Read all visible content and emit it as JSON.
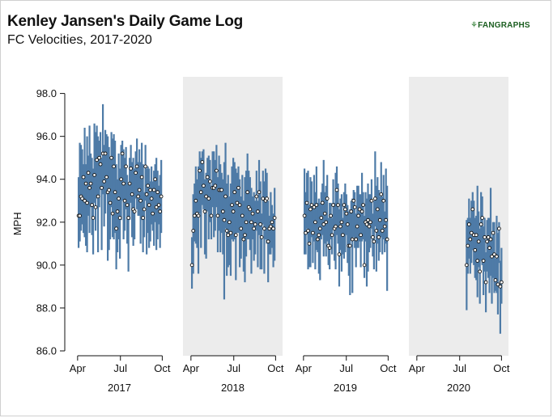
{
  "header": {
    "title": "Kenley Jansen's Daily Game Log",
    "subtitle": "FC Velocities, 2017-2020",
    "logo_text": "FANGRAPHS"
  },
  "colors": {
    "range_bar": "#4e7ba7",
    "point_fill": "#ffffff",
    "point_stroke": "#111111",
    "shaded_panel": "#ececec",
    "logo_green": "#2e7d32"
  },
  "chart_data": {
    "type": "scatter",
    "title": "Kenley Jansen's Daily Game Log",
    "subtitle": "FC Velocities, 2017-2020",
    "ylabel": "MPH",
    "ylim": [
      86,
      98.5
    ],
    "yticks": [
      "86.0",
      "88.0",
      "90.0",
      "92.0",
      "94.0",
      "96.0",
      "98.0"
    ],
    "xtick_labels": [
      "Apr",
      "Jul",
      "Oct"
    ],
    "grid": false,
    "panels": [
      {
        "year": "2017",
        "shaded": false,
        "games": [
          [
            92.3,
            90.8,
            94.1
          ],
          [
            92.3,
            91.1,
            95.7
          ],
          [
            93.2,
            91.6,
            95.6
          ],
          [
            93.1,
            91.9,
            95.4
          ],
          [
            94.1,
            91.5,
            94.7
          ],
          [
            93.0,
            91.3,
            96.4
          ],
          [
            93.8,
            90.9,
            94.7
          ],
          [
            92.9,
            90.6,
            96.0
          ],
          [
            94.3,
            92.3,
            95.1
          ],
          [
            93.6,
            91.5,
            96.5
          ],
          [
            93.8,
            92.7,
            95.2
          ],
          [
            92.8,
            91.4,
            95.0
          ],
          [
            92.2,
            90.5,
            94.5
          ],
          [
            94.2,
            92.9,
            96.6
          ],
          [
            92.7,
            91.6,
            96.2
          ],
          [
            94.9,
            93.1,
            96.5
          ],
          [
            93.2,
            90.6,
            96.0
          ],
          [
            95.0,
            92.7,
            95.8
          ],
          [
            94.7,
            93.5,
            96.2
          ],
          [
            93.6,
            90.7,
            95.0
          ],
          [
            95.2,
            93.3,
            97.5
          ],
          [
            93.9,
            91.8,
            95.6
          ],
          [
            95.2,
            92.4,
            96.3
          ],
          [
            94.1,
            93.3,
            96.1
          ],
          [
            93.4,
            90.2,
            96.0
          ],
          [
            93.5,
            90.7,
            95.5
          ],
          [
            92.9,
            91.2,
            95.0
          ],
          [
            95.0,
            92.7,
            96.2
          ],
          [
            92.4,
            91.3,
            95.9
          ],
          [
            94.6,
            91.2,
            96.1
          ],
          [
            93.4,
            91.5,
            95.8
          ],
          [
            91.7,
            89.8,
            94.7
          ],
          [
            92.5,
            90.6,
            94.0
          ],
          [
            93.1,
            91.2,
            95.2
          ],
          [
            92.2,
            90.3,
            94.5
          ],
          [
            94.0,
            92.1,
            95.6
          ],
          [
            95.2,
            93.0,
            95.8
          ],
          [
            93.8,
            91.2,
            95.4
          ],
          [
            93.0,
            91.6,
            95.0
          ],
          [
            94.6,
            92.6,
            95.5
          ],
          [
            92.8,
            91.0,
            94.2
          ],
          [
            92.2,
            89.7,
            93.8
          ],
          [
            93.8,
            92.1,
            95.0
          ],
          [
            94.5,
            92.9,
            95.6
          ],
          [
            93.3,
            91.3,
            94.8
          ],
          [
            92.6,
            90.9,
            95.0
          ],
          [
            92.5,
            91.2,
            94.5
          ],
          [
            94.3,
            93.1,
            95.3
          ],
          [
            94.6,
            92.6,
            95.9
          ],
          [
            93.2,
            92.3,
            94.8
          ],
          [
            93.5,
            92.3,
            95.4
          ],
          [
            93.0,
            91.0,
            94.8
          ],
          [
            94.1,
            92.1,
            95.7
          ],
          [
            92.2,
            90.6,
            94.7
          ],
          [
            92.6,
            91.3,
            93.4
          ],
          [
            94.6,
            93.0,
            95.6
          ],
          [
            93.3,
            90.5,
            94.5
          ],
          [
            93.7,
            91.5,
            94.6
          ],
          [
            92.8,
            90.8,
            94.5
          ],
          [
            93.5,
            91.1,
            93.9
          ],
          [
            93.1,
            91.9,
            94.6
          ],
          [
            92.4,
            91.6,
            93.9
          ],
          [
            93.5,
            90.9,
            94.4
          ],
          [
            94.0,
            92.0,
            94.7
          ],
          [
            92.7,
            90.7,
            95.0
          ],
          [
            93.4,
            91.2,
            94.4
          ],
          [
            92.8,
            91.9,
            93.7
          ],
          [
            92.5,
            90.8,
            94.2
          ],
          [
            93.2,
            91.5,
            94.9
          ]
        ]
      },
      {
        "year": "2018",
        "shaded": true,
        "games": [
          [
            90.0,
            88.9,
            91.3
          ],
          [
            91.6,
            89.6,
            93.3
          ],
          [
            92.3,
            91.1,
            93.8
          ],
          [
            93.0,
            91.0,
            94.6
          ],
          [
            92.4,
            90.8,
            94.0
          ],
          [
            92.3,
            89.6,
            94.6
          ],
          [
            94.4,
            92.4,
            95.3
          ],
          [
            93.4,
            90.8,
            95.0
          ],
          [
            94.8,
            92.8,
            95.3
          ],
          [
            93.7,
            92.6,
            95.4
          ],
          [
            92.5,
            90.5,
            94.0
          ],
          [
            93.2,
            90.3,
            94.3
          ],
          [
            94.1,
            92.5,
            95.0
          ],
          [
            93.1,
            91.2,
            95.1
          ],
          [
            93.9,
            92.0,
            94.9
          ],
          [
            92.3,
            91.2,
            93.7
          ],
          [
            93.6,
            92.7,
            95.3
          ],
          [
            93.6,
            91.3,
            95.3
          ],
          [
            93.7,
            91.6,
            94.9
          ],
          [
            94.4,
            92.7,
            95.6
          ],
          [
            92.3,
            90.6,
            94.1
          ],
          [
            93.5,
            91.6,
            95.1
          ],
          [
            93.5,
            90.6,
            94.7
          ],
          [
            93.5,
            91.5,
            94.3
          ],
          [
            92.5,
            90.5,
            94.0
          ],
          [
            92.1,
            88.4,
            94.8
          ],
          [
            93.2,
            91.7,
            95.7
          ],
          [
            91.6,
            89.5,
            93.8
          ],
          [
            91.4,
            89.9,
            94.2
          ],
          [
            92.0,
            90.0,
            93.2
          ],
          [
            91.5,
            89.5,
            93.8
          ],
          [
            92.8,
            91.2,
            94.6
          ],
          [
            92.5,
            91.1,
            95.0
          ],
          [
            93.4,
            91.2,
            94.8
          ],
          [
            91.4,
            89.3,
            94.5
          ],
          [
            92.9,
            91.5,
            94.3
          ],
          [
            93.6,
            91.5,
            94.6
          ],
          [
            92.8,
            89.9,
            94.0
          ],
          [
            91.7,
            90.3,
            93.2
          ],
          [
            92.3,
            91.2,
            94.2
          ],
          [
            91.2,
            89.7,
            93.0
          ],
          [
            91.4,
            89.2,
            94.1
          ],
          [
            92.0,
            90.4,
            94.4
          ],
          [
            93.4,
            91.2,
            95.2
          ],
          [
            92.7,
            91.2,
            94.4
          ],
          [
            92.6,
            90.7,
            94.1
          ],
          [
            92.0,
            89.6,
            93.6
          ],
          [
            92.4,
            91.2,
            93.2
          ],
          [
            91.7,
            90.2,
            93.4
          ],
          [
            91.9,
            90.5,
            93.0
          ],
          [
            93.2,
            91.6,
            94.4
          ],
          [
            92.5,
            89.9,
            93.0
          ],
          [
            93.4,
            91.4,
            94.9
          ],
          [
            91.9,
            89.8,
            93.9
          ],
          [
            91.3,
            89.8,
            92.4
          ],
          [
            93.1,
            91.9,
            94.4
          ],
          [
            91.7,
            89.6,
            93.9
          ],
          [
            93.0,
            91.2,
            94.5
          ],
          [
            93.1,
            91.0,
            94.3
          ],
          [
            91.1,
            89.2,
            93.0
          ],
          [
            91.7,
            90.5,
            92.3
          ],
          [
            91.8,
            90.5,
            93.4
          ],
          [
            92.0,
            90.8,
            92.8
          ],
          [
            91.7,
            89.9,
            92.4
          ],
          [
            92.2,
            90.2,
            93.6
          ]
        ]
      },
      {
        "year": "2019",
        "shaded": false,
        "games": [
          [
            92.3,
            90.5,
            94.5
          ],
          [
            91.5,
            90.5,
            93.4
          ],
          [
            92.9,
            91.7,
            94.3
          ],
          [
            91.6,
            89.8,
            94.4
          ],
          [
            91.0,
            89.9,
            92.8
          ],
          [
            92.6,
            89.9,
            94.1
          ],
          [
            92.8,
            91.3,
            93.9
          ],
          [
            91.5,
            90.1,
            92.8
          ],
          [
            92.7,
            91.1,
            94.2
          ],
          [
            92.0,
            89.8,
            93.4
          ],
          [
            92.8,
            90.7,
            94.6
          ],
          [
            91.2,
            90.6,
            92.9
          ],
          [
            91.4,
            89.6,
            93.1
          ],
          [
            91.7,
            89.3,
            92.9
          ],
          [
            92.2,
            91.2,
            93.4
          ],
          [
            92.9,
            91.4,
            93.8
          ],
          [
            91.9,
            90.4,
            94.9
          ],
          [
            92.4,
            91.0,
            93.4
          ],
          [
            92.0,
            90.4,
            93.7
          ],
          [
            93.1,
            91.1,
            94.2
          ],
          [
            90.9,
            90.0,
            92.2
          ],
          [
            90.8,
            89.8,
            92.9
          ],
          [
            92.3,
            91.2,
            92.9
          ],
          [
            91.4,
            90.5,
            92.2
          ],
          [
            92.8,
            91.7,
            94.0
          ],
          [
            91.7,
            90.2,
            92.9
          ],
          [
            91.8,
            89.8,
            94.3
          ],
          [
            93.5,
            91.4,
            94.6
          ],
          [
            92.8,
            91.0,
            93.8
          ],
          [
            90.5,
            89.0,
            92.6
          ],
          [
            91.8,
            90.7,
            93.1
          ],
          [
            92.0,
            89.7,
            93.3
          ],
          [
            91.4,
            90.5,
            92.2
          ],
          [
            92.8,
            90.3,
            93.4
          ],
          [
            92.6,
            90.6,
            93.8
          ],
          [
            92.4,
            91.4,
            93.3
          ],
          [
            91.9,
            90.1,
            92.8
          ],
          [
            90.9,
            89.5,
            92.5
          ],
          [
            90.9,
            88.6,
            92.6
          ],
          [
            92.5,
            91.2,
            93.0
          ],
          [
            91.2,
            88.7,
            93.1
          ],
          [
            93.0,
            91.3,
            93.5
          ],
          [
            92.7,
            90.8,
            93.4
          ],
          [
            91.2,
            89.9,
            92.4
          ],
          [
            91.8,
            90.8,
            93.7
          ],
          [
            92.3,
            90.8,
            93.7
          ],
          [
            92.6,
            91.1,
            93.3
          ],
          [
            91.4,
            89.9,
            93.3
          ],
          [
            92.5,
            91.1,
            94.3
          ],
          [
            92.8,
            91.2,
            93.4
          ],
          [
            90.0,
            89.4,
            92.3
          ],
          [
            92.0,
            91.1,
            93.4
          ],
          [
            91.9,
            89.0,
            93.1
          ],
          [
            92.1,
            89.7,
            93.8
          ],
          [
            91.8,
            90.6,
            93.3
          ],
          [
            92.0,
            90.8,
            93.3
          ],
          [
            93.0,
            91.7,
            94.0
          ],
          [
            91.3,
            90.4,
            92.4
          ],
          [
            91.1,
            89.8,
            93.0
          ],
          [
            93.1,
            91.8,
            95.3
          ],
          [
            91.6,
            89.7,
            93.7
          ],
          [
            92.6,
            91.0,
            94.1
          ],
          [
            91.3,
            90.2,
            93.5
          ],
          [
            92.1,
            90.6,
            93.2
          ],
          [
            93.3,
            91.3,
            94.8
          ],
          [
            91.6,
            90.5,
            93.2
          ],
          [
            93.0,
            91.2,
            94.2
          ],
          [
            91.8,
            90.6,
            92.5
          ],
          [
            92.1,
            91.0,
            94.5
          ],
          [
            91.2,
            88.8,
            93.7
          ]
        ]
      },
      {
        "year": "2020",
        "shaded": true,
        "games": [
          [
            90.0,
            87.9,
            92.1
          ],
          [
            90.9,
            89.6,
            92.2
          ],
          [
            91.9,
            90.3,
            93.1
          ],
          [
            91.2,
            89.6,
            92.2
          ],
          [
            91.5,
            90.1,
            93.0
          ],
          [
            92.6,
            90.7,
            93.4
          ],
          [
            91.4,
            90.0,
            93.0
          ],
          [
            90.7,
            89.4,
            92.2
          ],
          [
            91.4,
            89.3,
            92.3
          ],
          [
            90.2,
            88.5,
            93.7
          ],
          [
            91.1,
            89.9,
            92.5
          ],
          [
            89.7,
            88.2,
            91.7
          ],
          [
            91.9,
            90.2,
            93.4
          ],
          [
            92.2,
            90.0,
            93.2
          ],
          [
            90.2,
            88.6,
            91.8
          ],
          [
            91.3,
            89.7,
            92.2
          ],
          [
            89.2,
            87.8,
            90.6
          ],
          [
            91.1,
            89.7,
            92.1
          ],
          [
            91.3,
            89.4,
            92.2
          ],
          [
            90.8,
            88.7,
            92.2
          ],
          [
            91.2,
            89.5,
            93.6
          ],
          [
            90.4,
            88.2,
            91.3
          ],
          [
            91.5,
            89.4,
            92.0
          ],
          [
            90.5,
            88.7,
            92.0
          ],
          [
            89.3,
            88.8,
            90.3
          ],
          [
            90.4,
            88.7,
            92.3
          ],
          [
            89.1,
            87.7,
            91.5
          ],
          [
            91.7,
            90.1,
            92.0
          ],
          [
            89.0,
            86.8,
            90.2
          ],
          [
            89.2,
            88.2,
            90.8
          ]
        ]
      }
    ]
  }
}
